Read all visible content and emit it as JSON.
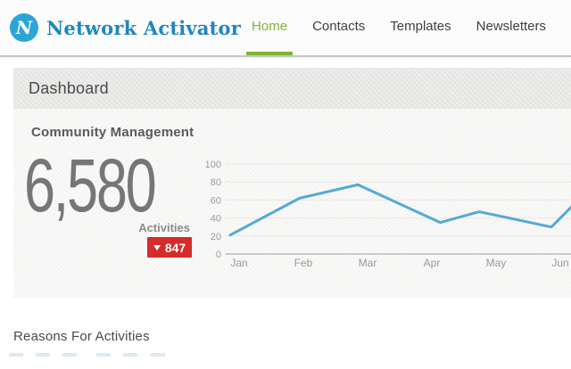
{
  "brand": {
    "name": "Network Activator"
  },
  "nav": {
    "items": [
      "Home",
      "Contacts",
      "Templates",
      "Newsletters"
    ],
    "active": "Home"
  },
  "page": {
    "title": "Dashboard"
  },
  "community": {
    "title": "Community Management",
    "total": "6,580",
    "total_label": "Activities",
    "delta": {
      "value": "847",
      "direction": "down"
    }
  },
  "chart_data": {
    "type": "line",
    "title": "",
    "xlabel": "",
    "ylabel": "",
    "categories": [
      "Jan",
      "Feb",
      "Mar",
      "Apr",
      "May",
      "Jun"
    ],
    "series": [
      {
        "name": "Activities",
        "x_month": [
          0.86,
          1.94,
          2.85,
          4.13,
          4.74,
          5.86,
          6.24
        ],
        "values": [
          21,
          62,
          77,
          35,
          47,
          30,
          57
        ],
        "color": "#55a9d6"
      }
    ],
    "ylim": [
      0,
      100
    ],
    "yticks": [
      0,
      20,
      40,
      60,
      80,
      100
    ],
    "grid": true,
    "legend": false
  },
  "reasons": {
    "title": "Reasons For Activities"
  },
  "colors": {
    "accent_green": "#7cb52e",
    "brand_blue": "#2ba5d6",
    "brand_text_blue": "#1f86c0",
    "alert_red": "#d52b2b",
    "chart_line": "#55a9d6",
    "grid_line": "#ece6e6",
    "axis_line": "#c9c9c9",
    "tick_text": "#9a9a9a"
  }
}
